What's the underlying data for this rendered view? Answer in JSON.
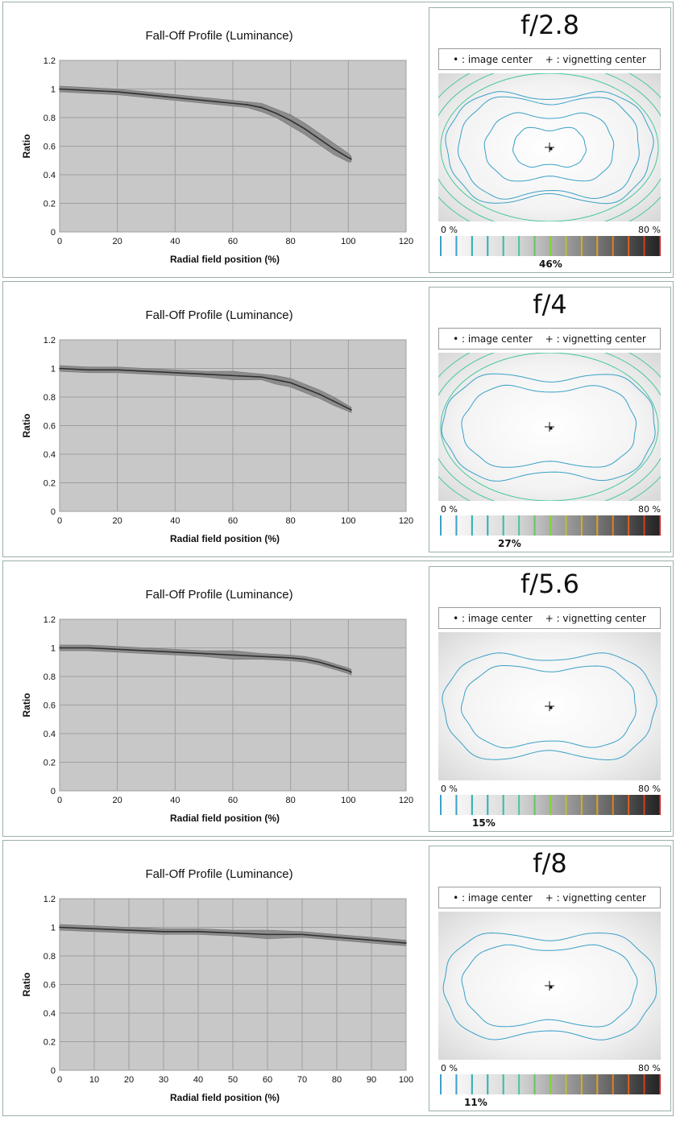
{
  "panels": [
    {
      "aperture": "f/2.8",
      "legend": {
        "image_center": "• : image center",
        "vignetting_center": "+ : vignetting center"
      },
      "scale": {
        "min": "0 %",
        "max": "80 %"
      },
      "vignetting_percent": "46%"
    },
    {
      "aperture": "f/4",
      "legend": {
        "image_center": "• : image center",
        "vignetting_center": "+ : vignetting center"
      },
      "scale": {
        "min": "0 %",
        "max": "80 %"
      },
      "vignetting_percent": "27%"
    },
    {
      "aperture": "f/5.6",
      "legend": {
        "image_center": "• : image center",
        "vignetting_center": "+ : vignetting center"
      },
      "scale": {
        "min": "0 %",
        "max": "80 %"
      },
      "vignetting_percent": "15%"
    },
    {
      "aperture": "f/8",
      "legend": {
        "image_center": "• : image center",
        "vignetting_center": "+ : vignetting center"
      },
      "scale": {
        "min": "0 %",
        "max": "80 %"
      },
      "vignetting_percent": "11%"
    }
  ],
  "chart_data": [
    {
      "type": "line",
      "title": "Fall-Off Profile (Luminance)",
      "xlabel": "Radial field position (%)",
      "ylabel": "Ratio",
      "xlim": [
        0,
        120
      ],
      "ylim": [
        0,
        1.2
      ],
      "xticks": [
        "0",
        "20",
        "40",
        "60",
        "80",
        "100",
        "120"
      ],
      "yticks": [
        "0",
        "0.2",
        "0.4",
        "0.6",
        "0.8",
        "1",
        "1.2"
      ],
      "grid": true,
      "x": [
        0,
        10,
        20,
        30,
        40,
        50,
        60,
        65,
        70,
        75,
        80,
        85,
        90,
        95,
        100,
        101
      ],
      "values": [
        1.0,
        0.99,
        0.98,
        0.96,
        0.94,
        0.92,
        0.9,
        0.89,
        0.87,
        0.83,
        0.78,
        0.72,
        0.65,
        0.58,
        0.52,
        0.51
      ],
      "band_width": [
        0.02,
        0.02,
        0.02,
        0.02,
        0.02,
        0.02,
        0.02,
        0.02,
        0.03,
        0.03,
        0.04,
        0.04,
        0.04,
        0.04,
        0.03,
        0.02
      ]
    },
    {
      "type": "line",
      "title": "Fall-Off Profile (Luminance)",
      "xlabel": "Radial field position (%)",
      "ylabel": "Ratio",
      "xlim": [
        0,
        120
      ],
      "ylim": [
        0,
        1.2
      ],
      "xticks": [
        "0",
        "20",
        "40",
        "60",
        "80",
        "100",
        "120"
      ],
      "yticks": [
        "0",
        "0.2",
        "0.4",
        "0.6",
        "0.8",
        "1",
        "1.2"
      ],
      "grid": true,
      "x": [
        0,
        10,
        20,
        30,
        40,
        50,
        60,
        70,
        75,
        80,
        85,
        90,
        95,
        100,
        101
      ],
      "values": [
        1.0,
        0.99,
        0.99,
        0.98,
        0.97,
        0.96,
        0.95,
        0.94,
        0.92,
        0.9,
        0.86,
        0.82,
        0.77,
        0.72,
        0.71
      ],
      "band_width": [
        0.02,
        0.02,
        0.02,
        0.02,
        0.02,
        0.02,
        0.03,
        0.02,
        0.03,
        0.03,
        0.03,
        0.03,
        0.03,
        0.02,
        0.02
      ]
    },
    {
      "type": "line",
      "title": "Fall-Off Profile (Luminance)",
      "xlabel": "Radial field position (%)",
      "ylabel": "Ratio",
      "xlim": [
        0,
        120
      ],
      "ylim": [
        0,
        1.2
      ],
      "xticks": [
        "0",
        "20",
        "40",
        "60",
        "80",
        "100",
        "120"
      ],
      "yticks": [
        "0",
        "0.2",
        "0.4",
        "0.6",
        "0.8",
        "1",
        "1.2"
      ],
      "grid": true,
      "x": [
        0,
        10,
        20,
        30,
        40,
        50,
        60,
        70,
        80,
        85,
        90,
        95,
        100,
        101
      ],
      "values": [
        1.0,
        1.0,
        0.99,
        0.98,
        0.97,
        0.96,
        0.95,
        0.94,
        0.93,
        0.92,
        0.9,
        0.87,
        0.84,
        0.83
      ],
      "band_width": [
        0.02,
        0.02,
        0.02,
        0.02,
        0.02,
        0.02,
        0.03,
        0.02,
        0.02,
        0.02,
        0.02,
        0.02,
        0.02,
        0.02
      ]
    },
    {
      "type": "line",
      "title": "Fall-Off Profile (Luminance)",
      "xlabel": "Radial field position (%)",
      "ylabel": "Ratio",
      "xlim": [
        0,
        100
      ],
      "ylim": [
        0,
        1.2
      ],
      "xticks": [
        "0",
        "10",
        "20",
        "30",
        "40",
        "50",
        "60",
        "70",
        "80",
        "90",
        "100"
      ],
      "yticks": [
        "0",
        "0.2",
        "0.4",
        "0.6",
        "0.8",
        "1",
        "1.2"
      ],
      "grid": true,
      "x": [
        0,
        10,
        20,
        30,
        40,
        50,
        60,
        70,
        80,
        90,
        100
      ],
      "values": [
        1.0,
        0.99,
        0.98,
        0.97,
        0.97,
        0.96,
        0.95,
        0.95,
        0.93,
        0.91,
        0.89
      ],
      "band_width": [
        0.02,
        0.02,
        0.02,
        0.02,
        0.02,
        0.02,
        0.03,
        0.02,
        0.02,
        0.02,
        0.02
      ]
    }
  ],
  "colors": {
    "plot_bg": "#c8c8c8",
    "grid": "#9e9e9e",
    "line": "#303030",
    "band": "#8c8c8c",
    "contour_blue": "#3aa0c8",
    "contour_green": "#48c898"
  }
}
